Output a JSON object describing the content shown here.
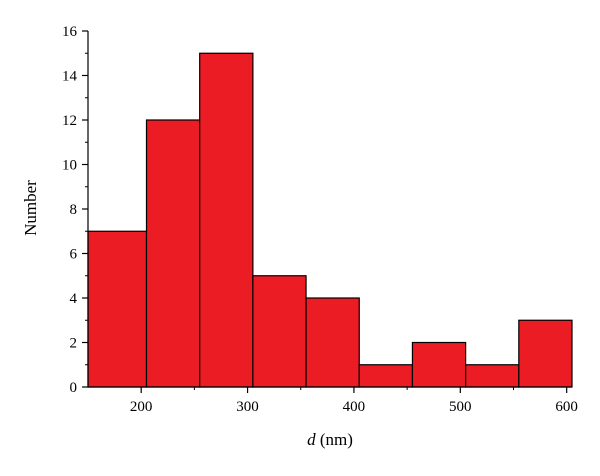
{
  "chart_data": {
    "type": "bar",
    "bins": [
      {
        "x0": 150,
        "x1": 205,
        "value": 7
      },
      {
        "x0": 205,
        "x1": 255,
        "value": 12
      },
      {
        "x0": 255,
        "x1": 305,
        "value": 15
      },
      {
        "x0": 305,
        "x1": 355,
        "value": 5
      },
      {
        "x0": 355,
        "x1": 405,
        "value": 4
      },
      {
        "x0": 405,
        "x1": 455,
        "value": 1
      },
      {
        "x0": 455,
        "x1": 505,
        "value": 2
      },
      {
        "x0": 505,
        "x1": 555,
        "value": 1
      },
      {
        "x0": 555,
        "x1": 605,
        "value": 3
      }
    ],
    "xlim": [
      150,
      605
    ],
    "ylim": [
      0,
      16
    ],
    "x_ticks": [
      200,
      300,
      400,
      500,
      600
    ],
    "x_minor_ticks": [
      250,
      350,
      450,
      550
    ],
    "y_ticks": [
      0,
      2,
      4,
      6,
      8,
      10,
      12,
      14,
      16
    ],
    "y_minor_ticks": [
      1,
      3,
      5,
      7,
      9,
      11,
      13,
      15
    ],
    "xlabel_var": "d",
    "xlabel_unit": " (nm)",
    "ylabel": "Number",
    "bar_color": "#ec1c24",
    "edge_color": "#000000",
    "grid": false,
    "legend": "none"
  }
}
